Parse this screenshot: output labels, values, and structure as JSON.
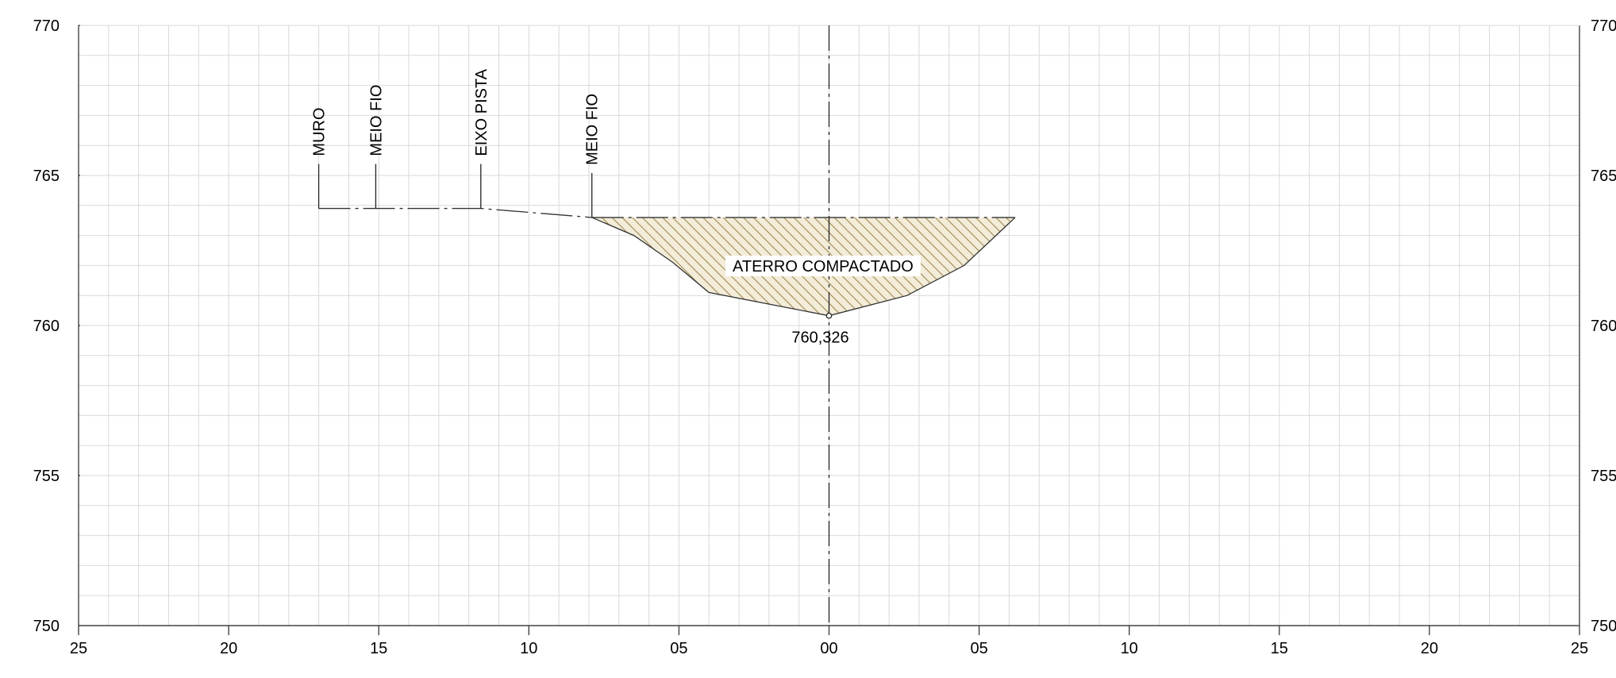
{
  "section": {
    "elevation_ticks": [
      "750",
      "755",
      "760",
      "765",
      "770"
    ],
    "offset_ticks": [
      "25",
      "20",
      "15",
      "10",
      "05",
      "00",
      "05",
      "10",
      "15",
      "20",
      "25"
    ],
    "markers": [
      {
        "label": "MURO",
        "offset": -17.0,
        "elev": 763.9
      },
      {
        "label": "MEIO FIO",
        "offset": -15.1,
        "elev": 763.9
      },
      {
        "label": "EIXO PISTA",
        "offset": -11.6,
        "elev": 763.9
      },
      {
        "label": "MEIO FIO",
        "offset": -7.9,
        "elev": 763.6
      }
    ],
    "fill_label": "ATERRO COMPACTADO",
    "low_point_label": "760,326",
    "low_point": {
      "offset": 0.0,
      "elev": 760.326
    },
    "fill_color": "#c9b68a",
    "hatch_color": "#a08a55",
    "fill_profile": [
      {
        "offset": -7.9,
        "elev": 763.6
      },
      {
        "offset": -6.5,
        "elev": 763.0
      },
      {
        "offset": -5.2,
        "elev": 762.1
      },
      {
        "offset": -4.0,
        "elev": 761.1
      },
      {
        "offset": 0.0,
        "elev": 760.326
      },
      {
        "offset": 2.6,
        "elev": 761.0
      },
      {
        "offset": 4.5,
        "elev": 762.0
      },
      {
        "offset": 6.2,
        "elev": 763.6
      }
    ],
    "existing_ground": [
      {
        "offset": -17.0,
        "elev": 763.9
      },
      {
        "offset": -11.6,
        "elev": 763.9
      },
      {
        "offset": -7.9,
        "elev": 763.6
      }
    ],
    "platform_elev": 763.6
  }
}
